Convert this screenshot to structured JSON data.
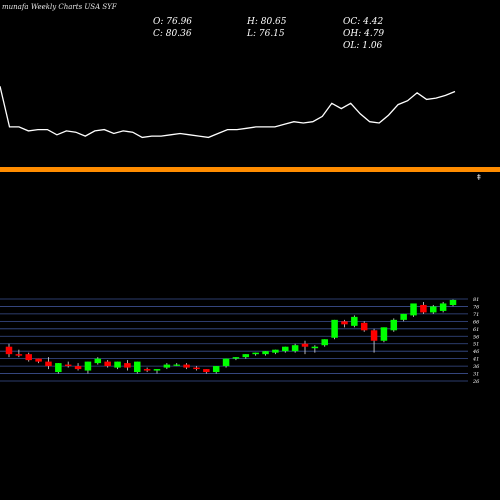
{
  "header": {
    "title": "munafa Weekly Charts USA SYF",
    "stats": {
      "open": "O: 76.96",
      "high": "H: 80.65",
      "oc": "OC: 4.42",
      "close": "C: 80.36",
      "low": "L: 76.15",
      "oh": "OH: 4.79",
      "ol": "OL: 1.06"
    }
  },
  "colors": {
    "background": "#000000",
    "line": "#ffffff",
    "divider": "#ff8c00",
    "bullish": "#00ff00",
    "bearish": "#ff0000",
    "grid": "#3b4f8f"
  },
  "chart_data": [
    {
      "type": "line",
      "title": "",
      "values": [
        80,
        49,
        49,
        46,
        47,
        47,
        43,
        46,
        45,
        42,
        46,
        47,
        44,
        46,
        45,
        41,
        42,
        42,
        43,
        44,
        43,
        42,
        41,
        44,
        47,
        47,
        48,
        49,
        49,
        49,
        51,
        53,
        52,
        53,
        57,
        67,
        63,
        67,
        59,
        53,
        52,
        58,
        66,
        69,
        75,
        70,
        71,
        73,
        76
      ]
    },
    {
      "type": "candlestick",
      "title": "",
      "ylim": [
        26,
        83
      ],
      "y_ticks": [
        81,
        76,
        71,
        66,
        61,
        56,
        51,
        46,
        41,
        36,
        31,
        26
      ],
      "candles": [
        {
          "o": 49,
          "h": 51,
          "l": 42,
          "c": 44,
          "dir": "down"
        },
        {
          "o": 43,
          "h": 47,
          "l": 42,
          "c": 44,
          "dir": "down"
        },
        {
          "o": 44,
          "h": 45,
          "l": 39,
          "c": 40,
          "dir": "down"
        },
        {
          "o": 41,
          "h": 41,
          "l": 38,
          "c": 39,
          "dir": "down"
        },
        {
          "o": 39,
          "h": 42,
          "l": 34,
          "c": 36,
          "dir": "down"
        },
        {
          "o": 32,
          "h": 38,
          "l": 31,
          "c": 38,
          "dir": "up"
        },
        {
          "o": 37,
          "h": 39,
          "l": 35,
          "c": 36,
          "dir": "down"
        },
        {
          "o": 36,
          "h": 38,
          "l": 33,
          "c": 34,
          "dir": "down"
        },
        {
          "o": 33,
          "h": 39,
          "l": 31,
          "c": 39,
          "dir": "up"
        },
        {
          "o": 38,
          "h": 42,
          "l": 37,
          "c": 41,
          "dir": "up"
        },
        {
          "o": 39,
          "h": 40,
          "l": 35,
          "c": 36,
          "dir": "down"
        },
        {
          "o": 35,
          "h": 39,
          "l": 34,
          "c": 39,
          "dir": "up"
        },
        {
          "o": 38,
          "h": 40,
          "l": 33,
          "c": 35,
          "dir": "down"
        },
        {
          "o": 32,
          "h": 39,
          "l": 31,
          "c": 39,
          "dir": "up"
        },
        {
          "o": 34,
          "h": 35,
          "l": 32,
          "c": 33,
          "dir": "down"
        },
        {
          "o": 33,
          "h": 34,
          "l": 31,
          "c": 34,
          "dir": "up"
        },
        {
          "o": 35,
          "h": 38,
          "l": 34,
          "c": 37,
          "dir": "up"
        },
        {
          "o": 37,
          "h": 38,
          "l": 36,
          "c": 37,
          "dir": "up"
        },
        {
          "o": 37,
          "h": 38,
          "l": 34,
          "c": 35,
          "dir": "down"
        },
        {
          "o": 35,
          "h": 36,
          "l": 33,
          "c": 34,
          "dir": "down"
        },
        {
          "o": 32,
          "h": 34,
          "l": 31,
          "c": 34,
          "dir": "down"
        },
        {
          "o": 32,
          "h": 36,
          "l": 31,
          "c": 36,
          "dir": "up"
        },
        {
          "o": 36,
          "h": 41,
          "l": 35,
          "c": 41,
          "dir": "up"
        },
        {
          "o": 41,
          "h": 42,
          "l": 40,
          "c": 42,
          "dir": "up"
        },
        {
          "o": 42,
          "h": 44,
          "l": 41,
          "c": 44,
          "dir": "up"
        },
        {
          "o": 44,
          "h": 45,
          "l": 43,
          "c": 45,
          "dir": "up"
        },
        {
          "o": 44,
          "h": 46,
          "l": 43,
          "c": 46,
          "dir": "up"
        },
        {
          "o": 45,
          "h": 47,
          "l": 44,
          "c": 47,
          "dir": "up"
        },
        {
          "o": 46,
          "h": 49,
          "l": 45,
          "c": 49,
          "dir": "up"
        },
        {
          "o": 46,
          "h": 51,
          "l": 45,
          "c": 50,
          "dir": "up"
        },
        {
          "o": 51,
          "h": 53,
          "l": 44,
          "c": 49,
          "dir": "down"
        },
        {
          "o": 48,
          "h": 50,
          "l": 45,
          "c": 49,
          "dir": "up"
        },
        {
          "o": 50,
          "h": 54,
          "l": 49,
          "c": 54,
          "dir": "up"
        },
        {
          "o": 55,
          "h": 67,
          "l": 54,
          "c": 67,
          "dir": "up"
        },
        {
          "o": 64,
          "h": 67,
          "l": 62,
          "c": 66,
          "dir": "down"
        },
        {
          "o": 63,
          "h": 70,
          "l": 62,
          "c": 69,
          "dir": "up"
        },
        {
          "o": 65,
          "h": 66,
          "l": 59,
          "c": 60,
          "dir": "down"
        },
        {
          "o": 60,
          "h": 61,
          "l": 45,
          "c": 53,
          "dir": "down"
        },
        {
          "o": 53,
          "h": 62,
          "l": 52,
          "c": 62,
          "dir": "up"
        },
        {
          "o": 60,
          "h": 68,
          "l": 59,
          "c": 67,
          "dir": "up"
        },
        {
          "o": 67,
          "h": 71,
          "l": 66,
          "c": 71,
          "dir": "up"
        },
        {
          "o": 70,
          "h": 78,
          "l": 69,
          "c": 78,
          "dir": "up"
        },
        {
          "o": 77,
          "h": 79,
          "l": 71,
          "c": 72,
          "dir": "down"
        },
        {
          "o": 72,
          "h": 77,
          "l": 71,
          "c": 76,
          "dir": "up"
        },
        {
          "o": 73,
          "h": 79,
          "l": 72,
          "c": 78,
          "dir": "up"
        },
        {
          "o": 76.96,
          "h": 80.65,
          "l": 76.15,
          "c": 80.36,
          "dir": "up"
        }
      ]
    }
  ]
}
